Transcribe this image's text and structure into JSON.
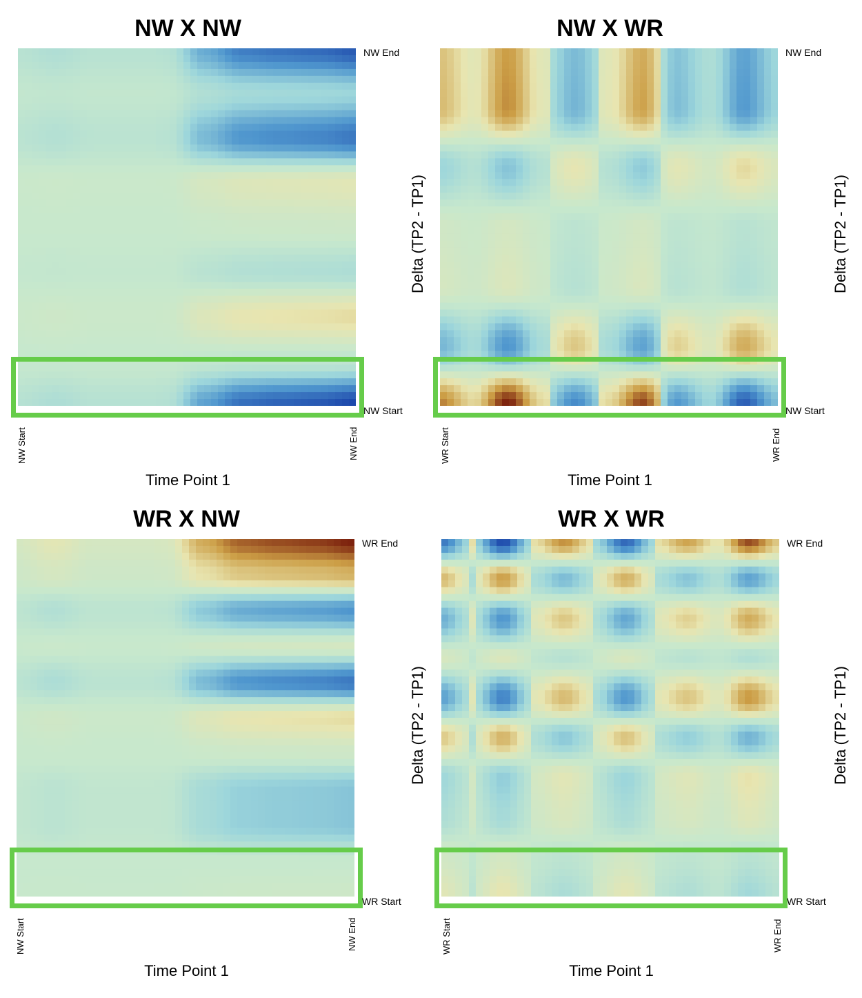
{
  "colors": {
    "highlight": "#66cc4a"
  },
  "chart_data": [
    {
      "type": "heatmap",
      "title": "NW X NW",
      "xlabel": "Time Point 1",
      "ylabel": "",
      "x_start": "NW Start",
      "x_end": "NW End",
      "y_start": "NW Start",
      "y_end": "NW End",
      "color_scale": "blue (negative) - pale green (zero) - brown (positive)",
      "x_range": [
        0,
        1
      ],
      "y_range": [
        0,
        1
      ],
      "column_profile": [
        0.0,
        0.06,
        0.0,
        -0.04,
        0.02,
        0.5,
        0.78,
        0.85,
        0.9,
        1.0
      ],
      "row_profile": [
        -0.9,
        -0.25,
        -0.75,
        0.2,
        0.05,
        -0.15,
        0.3,
        -0.05,
        -1.0
      ],
      "highlighted_row": 8
    },
    {
      "type": "heatmap",
      "title": "NW X WR",
      "xlabel": "Time Point 1",
      "ylabel": "Delta (TP2 - TP1)",
      "x_start": "WR Start",
      "x_end": "WR End",
      "y_start": "NW Start",
      "y_end": "NW End",
      "color_scale": "blue (negative) - pale green (zero) - brown (positive)",
      "x_range": [
        0,
        1
      ],
      "y_range": [
        0,
        1
      ],
      "column_profile": [
        0.6,
        0.1,
        1.0,
        0.1,
        -0.55,
        0.1,
        0.85,
        -0.45,
        0.0,
        -0.85,
        -0.2
      ],
      "row_profile": [
        0.6,
        0.65,
        -0.35,
        0.1,
        0.15,
        -0.6,
        1.0
      ],
      "highlighted_row": 6
    },
    {
      "type": "heatmap",
      "title": "WR X NW",
      "xlabel": "Time Point 1",
      "ylabel": "",
      "x_start": "NW Start",
      "x_end": "NW End",
      "y_start": "WR Start",
      "y_end": "WR End",
      "color_scale": "blue (negative) - pale green (zero) - brown (positive)",
      "x_range": [
        0,
        1
      ],
      "y_range": [
        0,
        1
      ],
      "column_profile": [
        0.0,
        0.12,
        0.0,
        -0.04,
        0.02,
        0.5,
        0.78,
        0.85,
        0.9,
        1.0
      ],
      "row_profile": [
        1.0,
        0.5,
        -0.6,
        0.1,
        -0.75,
        0.3,
        0.05,
        -0.35,
        -0.35,
        0.0,
        0.05
      ],
      "highlighted_row": 10
    },
    {
      "type": "heatmap",
      "title": "WR X WR",
      "xlabel": "Time Point 1",
      "ylabel": "Delta (TP2 - TP1)",
      "x_start": "WR Start",
      "x_end": "WR End",
      "y_start": "WR Start",
      "y_end": "WR End",
      "color_scale": "blue (negative) - pale green (zero) - brown (positive)",
      "x_range": [
        0,
        1
      ],
      "y_range": [
        0,
        1
      ],
      "column_profile": [
        -0.7,
        0.05,
        -1.0,
        0.05,
        0.55,
        0.0,
        -0.8,
        0.05,
        0.45,
        0.0,
        0.85,
        0.2
      ],
      "row_profile": [
        1.0,
        -0.6,
        0.6,
        -0.15,
        0.7,
        -0.5,
        0.3,
        0.2,
        -0.1,
        -0.25
      ],
      "highlighted_row": 9
    }
  ]
}
